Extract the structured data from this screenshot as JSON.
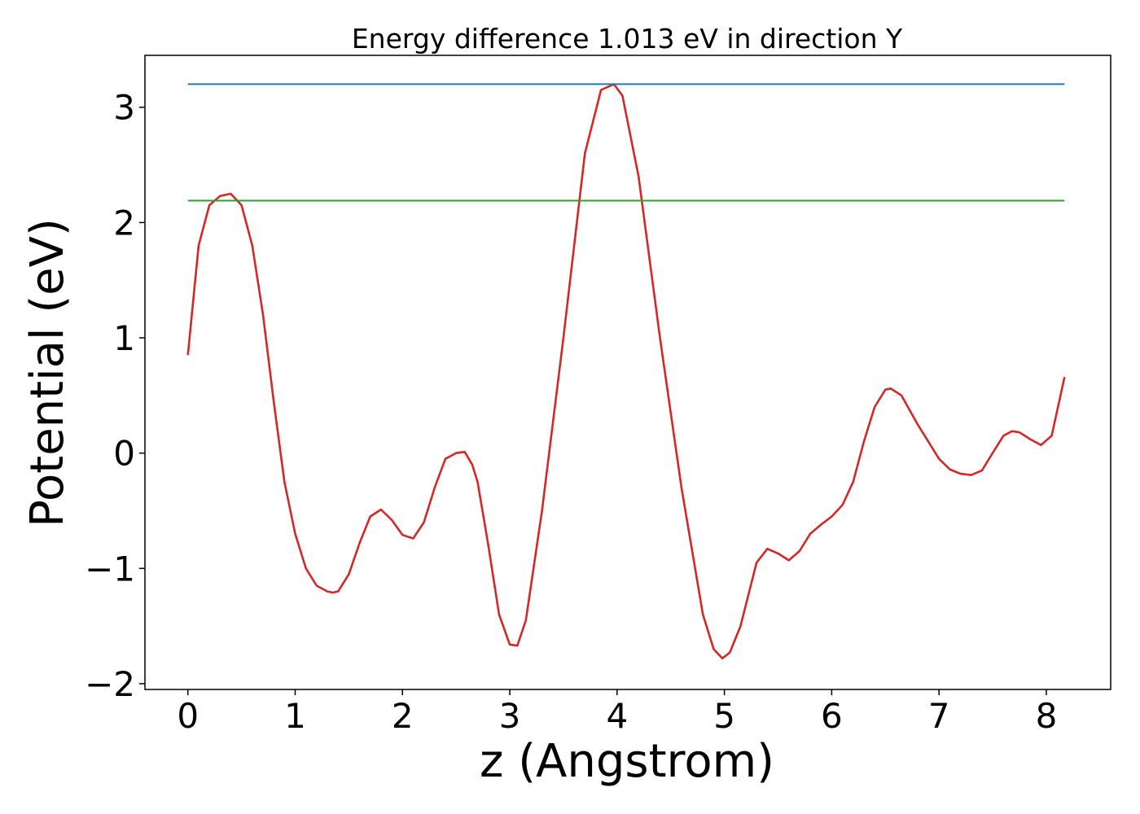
{
  "chart_data": {
    "type": "line",
    "title": "Energy difference 1.013 eV in direction Y",
    "xlabel": "z (Angstrom)",
    "ylabel": "Potential (eV)",
    "xlim": [
      -0.4,
      8.6
    ],
    "ylim": [
      -2.05,
      3.45
    ],
    "xticks": [
      0,
      1,
      2,
      3,
      4,
      5,
      6,
      7,
      8
    ],
    "yticks": [
      -2,
      -1,
      0,
      1,
      2,
      3
    ],
    "xtick_labels": [
      "0",
      "1",
      "2",
      "3",
      "4",
      "5",
      "6",
      "7",
      "8"
    ],
    "ytick_labels": [
      "−2",
      "−1",
      "0",
      "1",
      "2",
      "3"
    ],
    "grid": false,
    "legend": "none",
    "series": [
      {
        "color": "#d62728",
        "x": [
          0,
          0.1,
          0.2,
          0.3,
          0.4,
          0.5,
          0.6,
          0.7,
          0.8,
          0.9,
          1.0,
          1.1,
          1.2,
          1.3,
          1.35,
          1.4,
          1.5,
          1.6,
          1.7,
          1.8,
          1.9,
          2.0,
          2.1,
          2.2,
          2.3,
          2.4,
          2.5,
          2.58,
          2.65,
          2.7,
          2.8,
          2.9,
          3.0,
          3.07,
          3.15,
          3.3,
          3.5,
          3.7,
          3.85,
          3.97,
          4.05,
          4.2,
          4.4,
          4.6,
          4.8,
          4.9,
          4.98,
          5.05,
          5.15,
          5.3,
          5.4,
          5.5,
          5.6,
          5.7,
          5.8,
          5.9,
          6.0,
          6.1,
          6.2,
          6.3,
          6.4,
          6.5,
          6.55,
          6.65,
          6.8,
          7.0,
          7.1,
          7.2,
          7.3,
          7.4,
          7.5,
          7.6,
          7.68,
          7.75,
          7.85,
          7.95,
          8.05,
          8.17
        ],
        "y": [
          0.85,
          1.8,
          2.15,
          2.23,
          2.25,
          2.15,
          1.8,
          1.2,
          0.45,
          -0.25,
          -0.7,
          -1.0,
          -1.15,
          -1.2,
          -1.21,
          -1.2,
          -1.05,
          -0.78,
          -0.55,
          -0.49,
          -0.58,
          -0.71,
          -0.74,
          -0.6,
          -0.3,
          -0.05,
          0.0,
          0.01,
          -0.1,
          -0.25,
          -0.8,
          -1.4,
          -1.66,
          -1.67,
          -1.45,
          -0.5,
          1.0,
          2.6,
          3.15,
          3.2,
          3.1,
          2.4,
          1.0,
          -0.3,
          -1.4,
          -1.7,
          -1.78,
          -1.73,
          -1.5,
          -0.95,
          -0.83,
          -0.87,
          -0.93,
          -0.85,
          -0.7,
          -0.62,
          -0.55,
          -0.45,
          -0.25,
          0.1,
          0.4,
          0.55,
          0.56,
          0.5,
          0.25,
          -0.05,
          -0.14,
          -0.18,
          -0.19,
          -0.15,
          0.0,
          0.15,
          0.19,
          0.18,
          0.12,
          0.07,
          0.15,
          0.66
        ]
      },
      {
        "color": "#1f77b4",
        "x": [
          0,
          8.17
        ],
        "y": [
          3.2,
          3.2
        ]
      },
      {
        "color": "#2ca02c",
        "x": [
          0,
          8.17
        ],
        "y": [
          2.19,
          2.19
        ]
      }
    ]
  }
}
